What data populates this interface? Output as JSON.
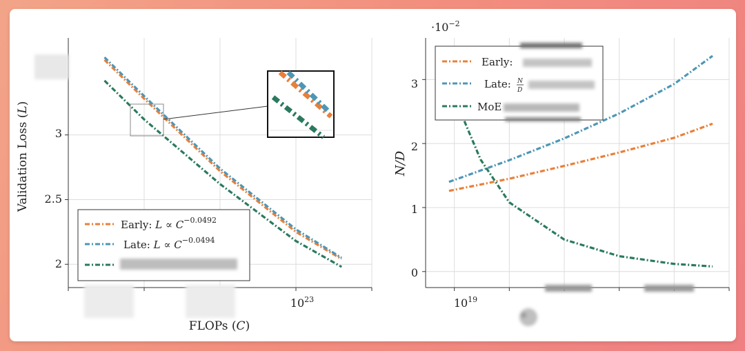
{
  "colors": {
    "early": "#e8803a",
    "late": "#4e96b5",
    "moe": "#2a7a5f"
  },
  "chart_data": [
    {
      "type": "line",
      "xlabel": "FLOPs (C)",
      "ylabel": "Validation Loss (L)",
      "xscale": "log",
      "x_ticks": [
        {
          "value": 1e+23,
          "label": "10^23"
        }
      ],
      "y_ticks": [
        {
          "value": 3,
          "label": "3"
        },
        {
          "value": 2.5,
          "label": "2.5"
        },
        {
          "value": 2,
          "label": "2"
        }
      ],
      "xlim": [
        1e+20,
        1e+24
      ],
      "ylim": [
        1.82,
        3.75
      ],
      "grid": true,
      "legend_position": "bottom-left",
      "inset": "zoom box in upper-right showing the three series",
      "series": [
        {
          "name": "Early: L ∝ C^-0.0492",
          "color": "#e8803a",
          "x": [
            3e+20,
            1e+21,
            1e+22,
            1e+23,
            4e+23
          ],
          "y": [
            3.58,
            3.28,
            2.72,
            2.25,
            2.04
          ]
        },
        {
          "name": "Late: L ∝ C^-0.0494",
          "color": "#4e96b5",
          "x": [
            3e+20,
            1e+21,
            1e+22,
            1e+23,
            4e+23
          ],
          "y": [
            3.6,
            3.3,
            2.74,
            2.27,
            2.05
          ]
        },
        {
          "name": "",
          "color": "#2a7a5f",
          "x": [
            3e+20,
            1e+21,
            1e+22,
            1e+23,
            4e+23
          ],
          "y": [
            3.42,
            3.12,
            2.62,
            2.18,
            1.98
          ]
        }
      ]
    },
    {
      "type": "line",
      "ylabel": "N/D",
      "yscale_label": "·10^-2",
      "xscale": "log",
      "x_ticks": [
        {
          "value": 1e+19,
          "label": "10^19"
        }
      ],
      "y_ticks": [
        {
          "value": 0,
          "label": "0"
        },
        {
          "value": 1,
          "label": "1"
        },
        {
          "value": 2,
          "label": "2"
        },
        {
          "value": 3,
          "label": "3"
        }
      ],
      "xlim": [
        3e+18,
        1e+24
      ],
      "ylim": [
        -0.25,
        3.65
      ],
      "grid": true,
      "legend_position": "top-left",
      "series": [
        {
          "name": "Early:",
          "color": "#e8803a",
          "x": [
            8e+18,
            1e+20,
            1e+21,
            1e+22,
            1e+23,
            5e+23
          ],
          "y": [
            1.26,
            1.45,
            1.65,
            1.86,
            2.09,
            2.31
          ]
        },
        {
          "name": "Late: N/D",
          "color": "#4e96b5",
          "x": [
            8e+18,
            1e+20,
            1e+21,
            1e+22,
            1e+23,
            5e+23
          ],
          "y": [
            1.4,
            1.74,
            2.08,
            2.47,
            2.93,
            3.37
          ]
        },
        {
          "name": "MoE",
          "color": "#2a7a5f",
          "x": [
            8e+18,
            1e+19,
            3e+19,
            1e+20,
            1e+21,
            1e+22,
            1e+23,
            5e+23
          ],
          "y": [
            2.95,
            2.72,
            1.75,
            1.08,
            0.5,
            0.24,
            0.12,
            0.08
          ]
        }
      ]
    }
  ],
  "left_panel": {
    "ylabel_text": "Validation Loss (",
    "ylabel_var": "L",
    "ylabel_close": ")",
    "xlabel_text": "FLOPs (",
    "xlabel_var": "C",
    "xlabel_close": ")",
    "x_tick_base": "10",
    "x_tick_exp": "23",
    "y_tick_labels": [
      "3",
      "2.5",
      "2"
    ],
    "legend": [
      {
        "prefix": "Early: ",
        "formula": "L ∝ C",
        "exp": "−0.0492"
      },
      {
        "prefix": "Late: ",
        "formula": "L ∝ C",
        "exp": "−0.0494"
      }
    ]
  },
  "right_panel": {
    "ylabel": "N/D",
    "scale_prefix": "·10",
    "scale_exp": "−2",
    "x_tick_base": "10",
    "x_tick_exp": "19",
    "y_tick_labels": [
      "0",
      "1",
      "2",
      "3"
    ],
    "legend": [
      {
        "label": "Early:"
      },
      {
        "label": "Late:",
        "frac_num": "N",
        "frac_den": "D"
      },
      {
        "label": "MoE"
      }
    ]
  }
}
